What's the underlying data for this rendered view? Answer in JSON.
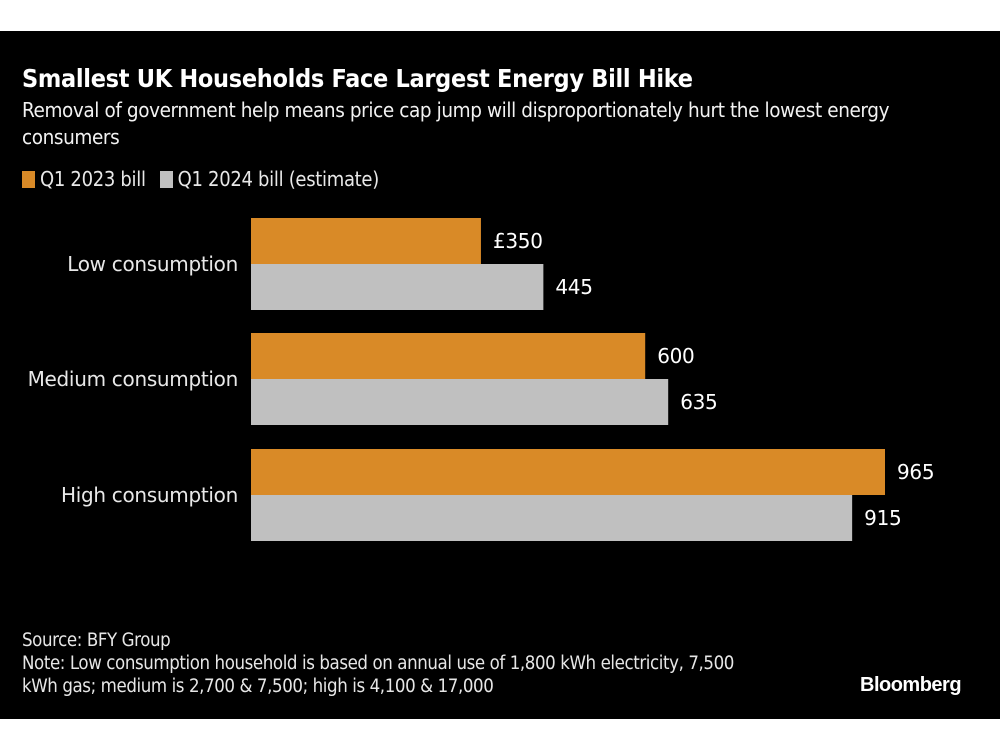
{
  "title": "Smallest UK Households Face Largest Energy Bill Hike",
  "subtitle": "Removal of government help means price cap jump will disproportionately hurt the lowest energy consumers",
  "legend": [
    {
      "label": "Q1 2023 bill",
      "color": "#d98a27"
    },
    {
      "label": "Q1 2024 bill (estimate)",
      "color": "#c0c0c0"
    }
  ],
  "footer": {
    "source": "Source: BFY Group",
    "note": "Note: Low consumption household is based on annual use of 1,800 kWh electricity, 7,500 kWh gas; medium is 2,700 & 7,500; high is 4,100 & 17,000"
  },
  "brand": "Bloomberg",
  "chart_data": {
    "type": "bar",
    "orientation": "horizontal",
    "title": "Smallest UK Households Face Largest Energy Bill Hike",
    "subtitle": "Removal of government help means price cap jump will disproportionately hurt the lowest energy consumers",
    "categories": [
      "Low consumption",
      "Medium consumption",
      "High consumption"
    ],
    "series": [
      {
        "name": "Q1 2023 bill",
        "color": "#d98a27",
        "values": [
          350,
          600,
          965
        ],
        "labels": [
          "£350",
          "600",
          "965"
        ]
      },
      {
        "name": "Q1 2024 bill (estimate)",
        "color": "#c0c0c0",
        "values": [
          445,
          635,
          915
        ],
        "labels": [
          "445",
          "635",
          "915"
        ]
      }
    ],
    "xlim": [
      0,
      965
    ],
    "xlabel": "",
    "ylabel": "",
    "grid": false,
    "legend_position": "top-left",
    "unit": "£"
  }
}
